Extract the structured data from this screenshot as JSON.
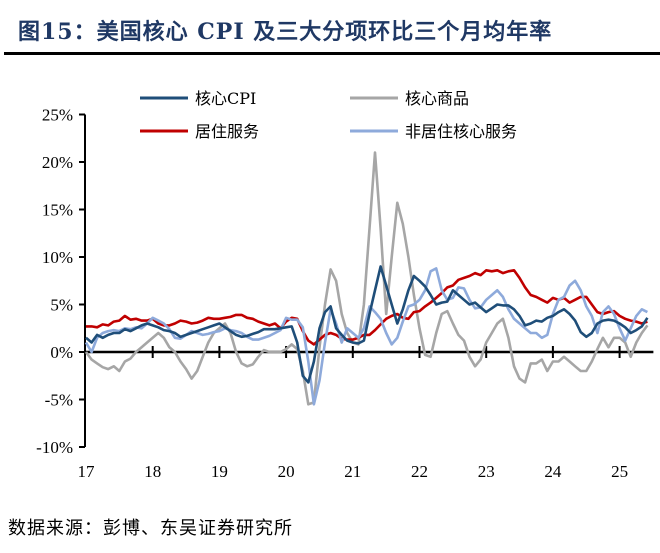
{
  "title": "图15：美国核心 CPI 及三大分项环比三个月均年率",
  "source": "数据来源：彭博、东吴证券研究所",
  "chart_data": {
    "type": "line",
    "title": "",
    "xlabel": "",
    "ylabel": "",
    "ylim": [
      -10,
      25
    ],
    "yticks": [
      "-10%",
      "-5%",
      "0%",
      "5%",
      "10%",
      "15%",
      "20%",
      "25%"
    ],
    "ytick_values": [
      -10,
      -5,
      0,
      5,
      10,
      15,
      20,
      25
    ],
    "xticks": [
      "17",
      "18",
      "19",
      "20",
      "21",
      "22",
      "23",
      "24",
      "25"
    ],
    "x_start": "2017-01",
    "x_frequency": "monthly",
    "grid": false,
    "legend_position": "top",
    "series": [
      {
        "name": "核心CPI",
        "color": "#1f4e79",
        "values": [
          1.5,
          1.0,
          1.8,
          1.5,
          1.8,
          2.0,
          2.0,
          2.4,
          2.2,
          2.5,
          2.8,
          3.0,
          2.8,
          2.6,
          2.3,
          2.2,
          2.0,
          1.6,
          1.8,
          2.0,
          2.2,
          2.4,
          2.6,
          2.8,
          3.0,
          2.6,
          2.2,
          1.8,
          1.6,
          1.7,
          1.9,
          2.1,
          2.4,
          2.4,
          2.4,
          2.5,
          2.6,
          2.7,
          1.0,
          -2.5,
          -3.2,
          -1.0,
          2.5,
          4.2,
          4.8,
          2.5,
          1.8,
          1.2,
          1.0,
          0.9,
          1.2,
          4.0,
          6.5,
          9.0,
          7.0,
          5.0,
          3.0,
          4.5,
          6.5,
          8.0,
          7.5,
          6.9,
          6.0,
          5.0,
          5.2,
          5.3,
          6.5,
          6.0,
          5.5,
          5.0,
          5.2,
          4.7,
          4.2,
          4.6,
          5.0,
          4.9,
          4.9,
          4.5,
          3.8,
          2.8,
          3.0,
          3.3,
          3.2,
          3.6,
          3.8,
          4.2,
          4.5,
          4.0,
          3.3,
          2.1,
          1.6,
          2.0,
          3.0,
          3.3,
          3.4,
          3.3,
          3.0,
          2.6,
          2.0,
          2.3,
          2.7,
          3.6
        ]
      },
      {
        "name": "核心商品",
        "color": "#a6a6a6",
        "values": [
          0,
          -0.8,
          -1.2,
          -1.6,
          -1.8,
          -1.5,
          -2.0,
          -1.0,
          -0.7,
          0,
          0.5,
          1.0,
          1.5,
          2.0,
          1.5,
          0.5,
          0.0,
          -1.0,
          -1.8,
          -2.8,
          -2.0,
          -0.5,
          1.0,
          2.0,
          2.5,
          3.0,
          2.0,
          0,
          -1.2,
          -1.5,
          -1.3,
          -0.5,
          0.2,
          0.0,
          0.0,
          0.0,
          0.3,
          0.8,
          0.3,
          -2.0,
          -5.5,
          -5.3,
          0.5,
          5.0,
          8.7,
          7.5,
          4.0,
          2.0,
          1.0,
          0.8,
          5.0,
          13.0,
          21.0,
          13.0,
          4.0,
          10.0,
          15.7,
          13.5,
          10.0,
          6.0,
          2.5,
          -0.3,
          -0.5,
          2.0,
          4.0,
          4.3,
          3.0,
          1.8,
          1.2,
          -0.5,
          -1.5,
          -0.8,
          1.0,
          2.0,
          3.0,
          3.5,
          1.5,
          -1.5,
          -2.8,
          -3.2,
          -1.2,
          -1.2,
          -0.8,
          -2.0,
          -1.0,
          -1.0,
          -0.5,
          -1.0,
          -1.5,
          -2.0,
          -2.0,
          -1.0,
          0.3,
          1.5,
          0.5,
          1.5,
          1.5,
          1.0,
          -0.5,
          1.0,
          2.0,
          2.8
        ]
      },
      {
        "name": "居住服务",
        "color": "#c00000",
        "values": [
          2.7,
          2.7,
          2.6,
          2.9,
          2.8,
          3.2,
          3.3,
          3.8,
          3.4,
          3.5,
          3.3,
          3.3,
          3.5,
          3.0,
          2.8,
          2.8,
          3.0,
          3.3,
          3.2,
          3.0,
          3.1,
          3.3,
          3.6,
          3.5,
          3.5,
          3.6,
          3.7,
          3.9,
          3.9,
          3.6,
          3.5,
          3.2,
          3.0,
          2.8,
          3.0,
          2.5,
          3.2,
          3.6,
          3.5,
          2.2,
          1.2,
          0.8,
          1.3,
          1.8,
          2.0,
          1.8,
          1.4,
          1.3,
          1.3,
          1.5,
          1.8,
          1.8,
          2.3,
          2.9,
          3.5,
          3.8,
          4.0,
          3.6,
          3.5,
          4.2,
          4.3,
          4.8,
          5.2,
          5.7,
          6.2,
          6.8,
          7.0,
          7.6,
          7.8,
          8.0,
          8.3,
          8.1,
          8.6,
          8.5,
          8.6,
          8.3,
          8.5,
          8.6,
          7.8,
          6.8,
          6.0,
          5.8,
          5.5,
          5.2,
          5.7,
          5.5,
          5.7,
          5.2,
          5.5,
          5.8,
          5.8,
          5.0,
          4.2,
          4.0,
          4.2,
          4.3,
          3.8,
          3.5,
          3.3,
          3.2,
          3.0,
          3.2
        ]
      },
      {
        "name": "非居住核心服务",
        "color": "#8eaadb",
        "values": [
          1.0,
          0.0,
          1.5,
          2.0,
          2.2,
          2.3,
          2.2,
          2.5,
          2.4,
          2.6,
          2.5,
          3.0,
          3.6,
          3.3,
          3.0,
          2.4,
          1.5,
          1.4,
          1.8,
          2.2,
          2.0,
          1.8,
          1.9,
          2.1,
          2.2,
          2.5,
          2.3,
          2.2,
          2.0,
          1.6,
          1.3,
          1.3,
          1.5,
          1.7,
          2.0,
          2.3,
          3.6,
          3.4,
          3.4,
          2.6,
          -1.0,
          -5.5,
          -3.0,
          1.0,
          4.5,
          3.0,
          1.0,
          2.5,
          2.0,
          1.5,
          2.5,
          4.8,
          4.2,
          3.5,
          2.0,
          0.8,
          1.5,
          3.2,
          4.8,
          5.0,
          5.5,
          6.5,
          8.5,
          8.8,
          6.5,
          5.5,
          5.7,
          6.8,
          6.7,
          5.5,
          4.6,
          4.7,
          5.5,
          6.0,
          6.5,
          5.8,
          4.5,
          3.5,
          3.0,
          2.5,
          2.0,
          2.0,
          1.5,
          1.8,
          4.0,
          5.5,
          5.8,
          7.0,
          7.5,
          6.5,
          4.8,
          3.8,
          2.0,
          4.2,
          4.8,
          4.0,
          2.5,
          1.2,
          2.5,
          3.8,
          4.5,
          4.2
        ]
      }
    ]
  }
}
